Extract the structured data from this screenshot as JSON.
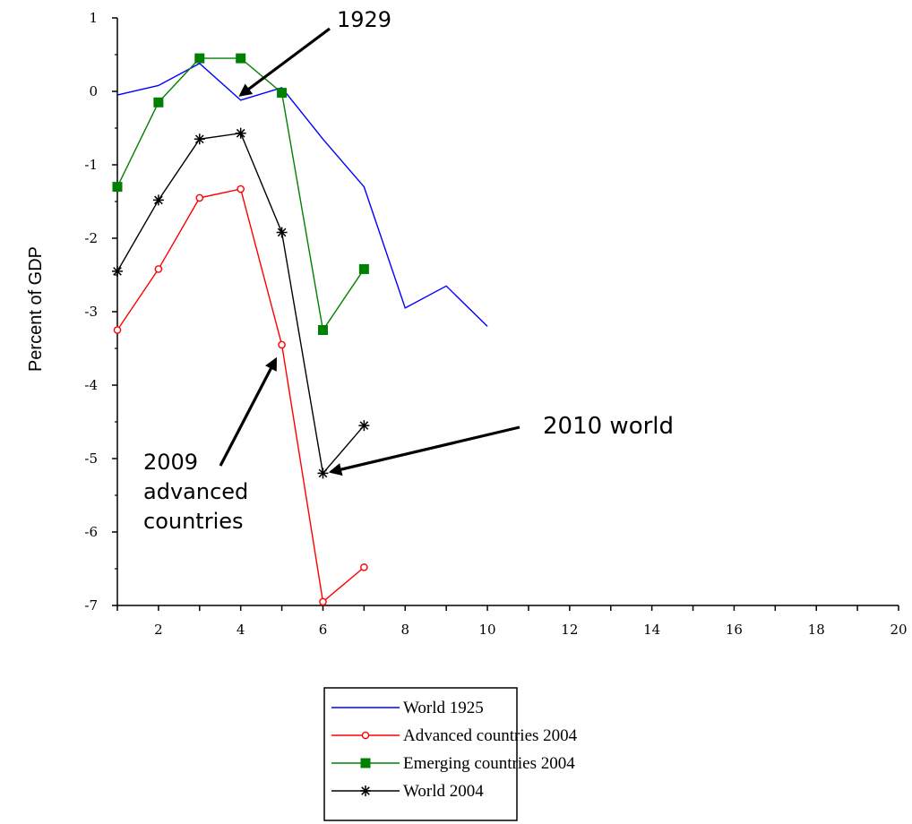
{
  "chart_data": {
    "type": "line",
    "title": "",
    "xlabel": "",
    "ylabel": "Percent of GDP",
    "xlim": [
      1,
      20
    ],
    "ylim": [
      -7,
      1
    ],
    "x_ticks": [
      "2",
      "4",
      "6",
      "8",
      "10",
      "12",
      "14",
      "16",
      "18",
      "20"
    ],
    "y_ticks": [
      "1",
      "0",
      "-1",
      "-2",
      "-3",
      "-4",
      "-5",
      "-6",
      "-7"
    ],
    "grid": false,
    "legend_position": "bottom-center",
    "series": [
      {
        "name": "World 1925",
        "color": "#0000ff",
        "marker": "none",
        "x": [
          1,
          2,
          3,
          4,
          5,
          6,
          7,
          8,
          9,
          10
        ],
        "y": [
          -0.05,
          0.08,
          0.38,
          -0.12,
          0.05,
          -0.65,
          -1.3,
          -2.95,
          -2.65,
          -3.2
        ]
      },
      {
        "name": "Advanced countries 2004",
        "color": "#ff0000",
        "marker": "open-circle",
        "x": [
          1,
          2,
          3,
          4,
          5,
          6,
          7
        ],
        "y": [
          -3.25,
          -2.42,
          -1.45,
          -1.33,
          -3.45,
          -6.95,
          -6.48
        ]
      },
      {
        "name": "Emerging countries 2004",
        "color": "#008000",
        "marker": "filled-square",
        "x": [
          1,
          2,
          3,
          4,
          5,
          6,
          7
        ],
        "y": [
          -1.3,
          -0.15,
          0.45,
          0.45,
          -0.02,
          -3.25,
          -2.42
        ]
      },
      {
        "name": "World 2004",
        "color": "#000000",
        "marker": "star",
        "x": [
          1,
          2,
          3,
          4,
          5,
          6,
          7
        ],
        "y": [
          -2.45,
          -1.48,
          -0.65,
          -0.57,
          -1.92,
          -5.2,
          -4.55
        ]
      }
    ],
    "annotations": [
      {
        "id": "1929",
        "lines": [
          "1929"
        ],
        "arrow_to": [
          4,
          -0.05
        ]
      },
      {
        "id": "2009",
        "lines": [
          "2009",
          "advanced",
          "countries"
        ],
        "arrow_to": [
          4.85,
          -3.65
        ]
      },
      {
        "id": "2010",
        "lines": [
          "2010 world"
        ],
        "arrow_to": [
          6.2,
          -5.18
        ]
      }
    ]
  }
}
